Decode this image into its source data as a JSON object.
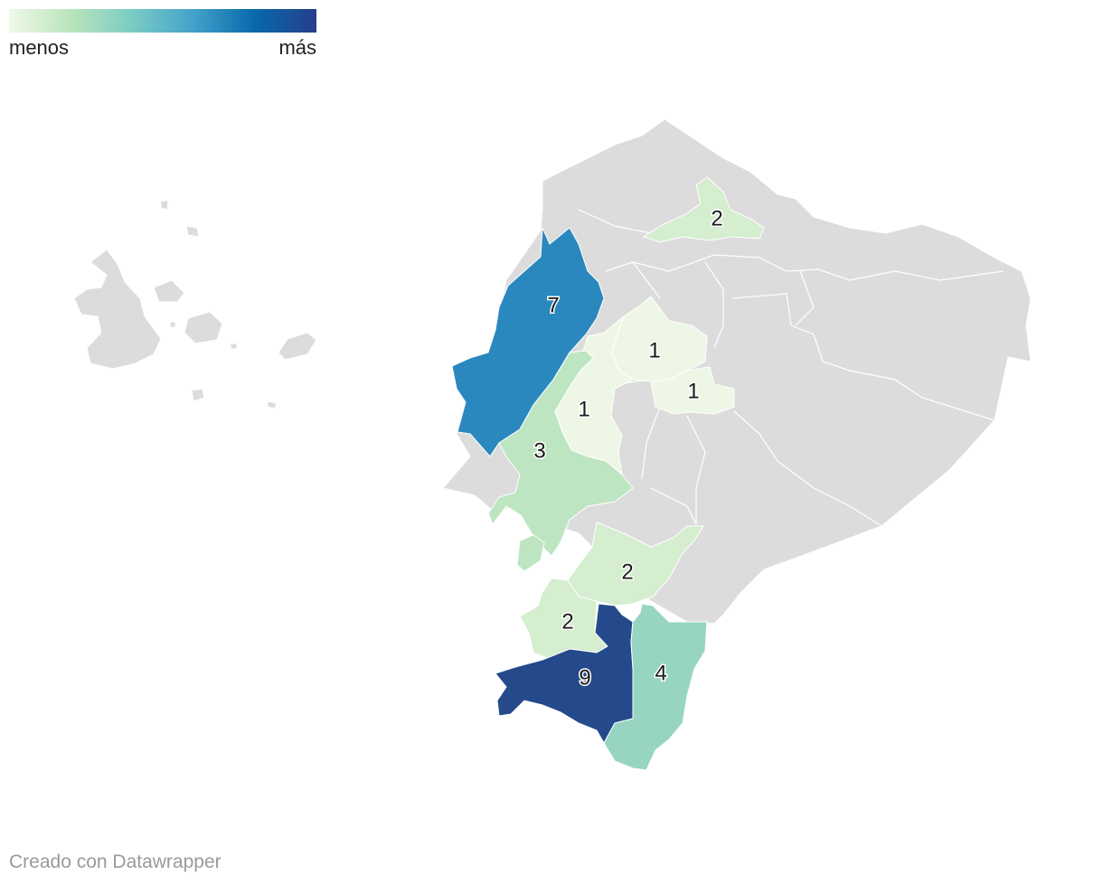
{
  "legend": {
    "min_label": "menos",
    "max_label": "más",
    "colors": [
      "#f0f9e8",
      "#bae4bc",
      "#7bccc4",
      "#43a2ca",
      "#0868ac",
      "#253f8a"
    ]
  },
  "credit": "Creado con Datawrapper",
  "colors": {
    "no_data": "#dcdcdc",
    "border": "#ffffff"
  },
  "regions": [
    {
      "id": "carchi-imbabura",
      "value": 2,
      "label": "2",
      "color": "#d4eecf"
    },
    {
      "id": "manabi",
      "value": 7,
      "label": "7",
      "color": "#2a88bf"
    },
    {
      "id": "cotopaxi",
      "value": 1,
      "label": "1",
      "color": "#eef7e6"
    },
    {
      "id": "tungurahua",
      "value": 1,
      "label": "1",
      "color": "#eef7e6"
    },
    {
      "id": "bolivar",
      "value": 1,
      "label": "1",
      "color": "#eef7e6"
    },
    {
      "id": "los-rios",
      "value": 3,
      "label": "3",
      "color": "#bde5c1"
    },
    {
      "id": "guayas-east",
      "value": 3,
      "label": "",
      "color": "#bde5c1"
    },
    {
      "id": "azuay",
      "value": 2,
      "label": "2",
      "color": "#d4eecf"
    },
    {
      "id": "el-oro",
      "value": 2,
      "label": "2",
      "color": "#d4eecf"
    },
    {
      "id": "loja",
      "value": 9,
      "label": "9",
      "color": "#244a8c"
    },
    {
      "id": "zamora",
      "value": 4,
      "label": "4",
      "color": "#97d5c2"
    }
  ]
}
